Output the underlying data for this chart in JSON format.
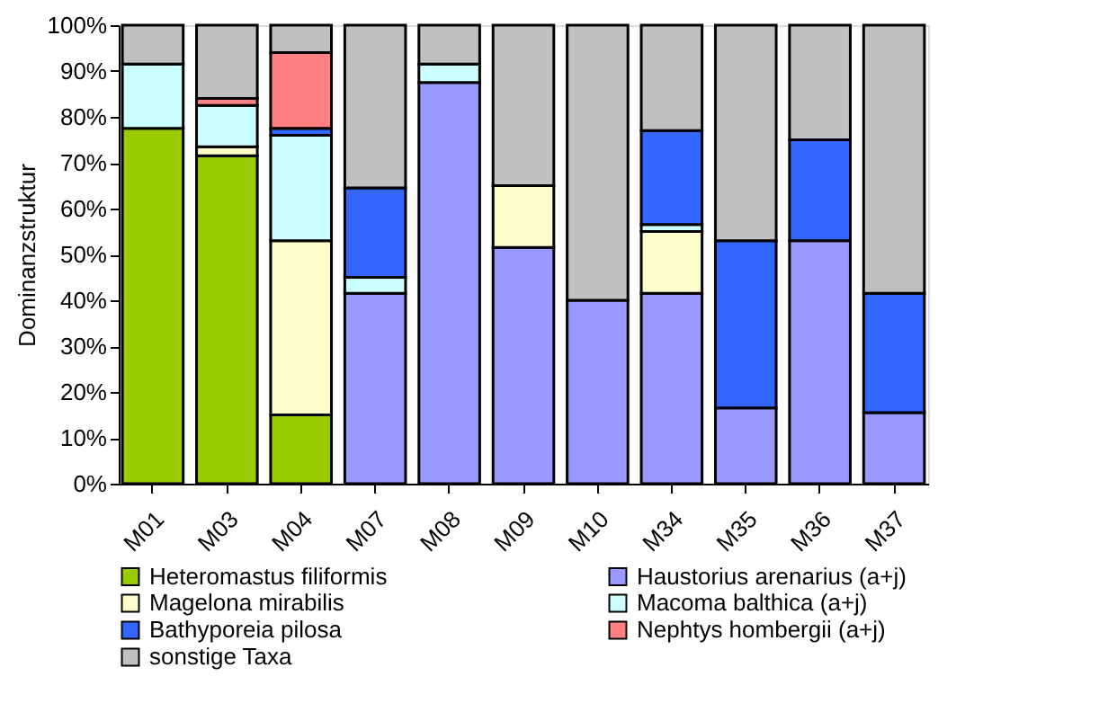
{
  "chart_data": {
    "type": "bar",
    "stacked": true,
    "ylabel": "Dominanzstruktur",
    "categories": [
      "M01",
      "M03",
      "M04",
      "M07",
      "M08",
      "M09",
      "M10",
      "M34",
      "M35",
      "M36",
      "M37"
    ],
    "series": [
      {
        "name": "Heteromastus filiformis",
        "color": "#99cc00",
        "values": [
          77.5,
          71.5,
          15,
          null,
          null,
          null,
          null,
          null,
          null,
          null,
          null
        ]
      },
      {
        "name": "Haustorius arenarius (a+j)",
        "color": "#9999ff",
        "values": [
          null,
          null,
          null,
          41.5,
          87.5,
          51.5,
          40,
          41.5,
          16.5,
          53,
          15.5
        ]
      },
      {
        "name": "Magelona mirabilis",
        "color": "#ffffcc",
        "values": [
          null,
          2,
          38,
          null,
          null,
          13.5,
          null,
          13.5,
          null,
          null,
          null
        ]
      },
      {
        "name": "Macoma balthica (a+j)",
        "color": "#ccffff",
        "values": [
          14,
          9,
          23,
          3.5,
          4,
          null,
          null,
          1.5,
          null,
          null,
          null
        ]
      },
      {
        "name": "Bathyporeia pilosa",
        "color": "#3366ff",
        "values": [
          null,
          null,
          1.5,
          19.5,
          null,
          null,
          null,
          20.5,
          36.5,
          22,
          26
        ]
      },
      {
        "name": "Nephtys hombergii (a+j)",
        "color": "#ff8080",
        "values": [
          null,
          1.5,
          16.5,
          null,
          null,
          null,
          null,
          null,
          null,
          null,
          null
        ]
      },
      {
        "name": "sonstige Taxa",
        "color": "#c0c0c0",
        "values": [
          8.5,
          16,
          6,
          35.5,
          8.5,
          35,
          60,
          23,
          47,
          25,
          58.5
        ]
      }
    ],
    "ylim": [
      0,
      100
    ],
    "yticks": [
      {
        "value": 0,
        "label": "0%"
      },
      {
        "value": 10,
        "label": "10%"
      },
      {
        "value": 20,
        "label": "20%"
      },
      {
        "value": 30,
        "label": "30%"
      },
      {
        "value": 40,
        "label": "40%"
      },
      {
        "value": 50,
        "label": "50%"
      },
      {
        "value": 60,
        "label": "60%"
      },
      {
        "value": 70,
        "label": "70%"
      },
      {
        "value": 80,
        "label": "80%"
      },
      {
        "value": 90,
        "label": "90%"
      },
      {
        "value": 100,
        "label": "100%"
      }
    ],
    "legend": "bottom"
  }
}
